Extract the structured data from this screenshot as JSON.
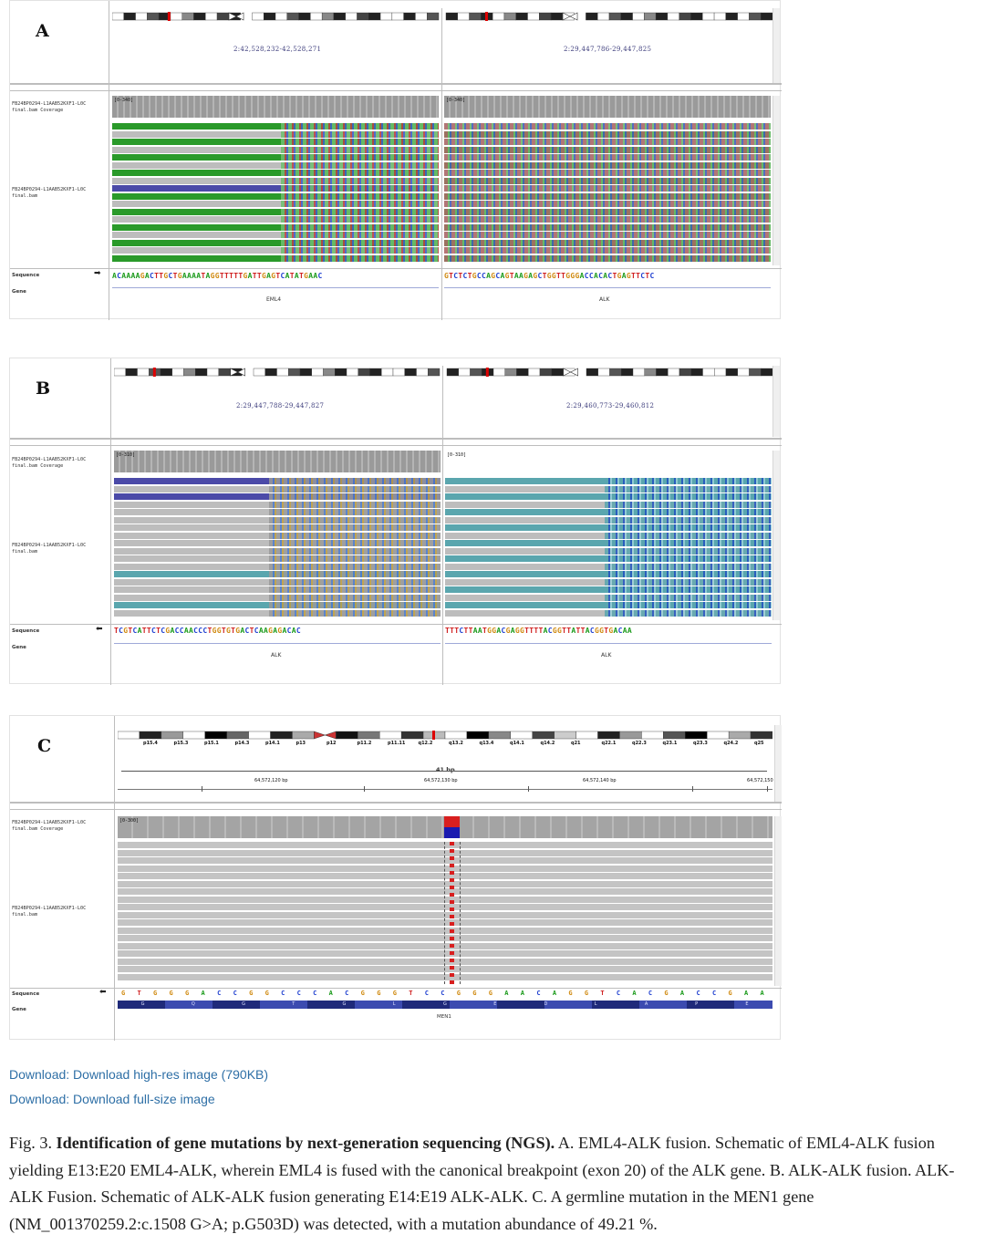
{
  "panels": {
    "A": {
      "letter": "A",
      "coord_left": "2:42,528,232-42,528,271",
      "coord_right": "2:29,447,786-29,447,825",
      "track_coverage": "FB24BP0294-L1AAB52KXF1-L0C\nfinal.bam Coverage",
      "track_bam": "FB24BP0294-L1AAB52KXF1-L0C\nfinal.bam",
      "cov_range": "[0-340]",
      "sequence_label": "Sequence",
      "gene_label": "Gene",
      "sequence_left": "ACAAAAGACTTGCTGAAAATAGGTTTTTGATTGAGTCATATGAAC",
      "sequence_right": "GTCTCTGCCAGCAGTAAGAGCTGGTTGGGACCACACTGAGTTCTC",
      "gene_left": "EML4",
      "gene_right": "ALK"
    },
    "B": {
      "letter": "B",
      "coord_left": "2:29,447,788-29,447,827",
      "coord_right": "2:29,460,773-29,460,812",
      "track_coverage": "FB24BP0294-L1AAB52KXF1-L0C\nfinal.bam Coverage",
      "track_bam": "FB24BP0294-L1AAB52KXF1-L0C\nfinal.bam",
      "cov_range": "[0-310]",
      "sequence_label": "Sequence",
      "gene_label": "Gene",
      "sequence_left": "TCGTCATTCTCGACCAACCCTGGTGTGACTCAAGAGACAC",
      "sequence_right": "TTTCTTAATGGACGAGGTTTTACGGTTATTACGGTGACAA",
      "gene_left": "ALK",
      "gene_right": "ALK"
    },
    "C": {
      "letter": "C",
      "bands": [
        "p15.4",
        "p15.3",
        "p15.1",
        "p14.3",
        "p14.1",
        "p13",
        "p12",
        "p11.2",
        "p11.11",
        "q12.2",
        "q13.2",
        "q13.4",
        "q14.1",
        "q14.2",
        "q21",
        "q22.1",
        "q22.3",
        "q23.1",
        "q23.3",
        "q24.2",
        "q25"
      ],
      "span": "41 bp",
      "ruler": [
        "64,572,120 bp",
        "64,572,130 bp",
        "64,572,140 bp",
        "64,572,150"
      ],
      "track_coverage": "FB24BP0294-L1AAB52KXF1-L0C\nfinal.bam Coverage",
      "track_bam": "FB24BP0294-L1AAB52KXF1-L0C\nfinal.bam",
      "cov_range": "[0-300]",
      "sequence_label": "Sequence",
      "gene_label": "Gene",
      "sequence": "GTGGGACCGGCCCACGGGTCCGGGAACAGGTCACGACCGAA",
      "aminoacids": "G Q G T G L G E D L A P E",
      "gene": "MEN1"
    }
  },
  "links": {
    "high_res": "Download: Download high-res image (790KB)",
    "full_size": "Download: Download full-size image"
  },
  "caption": {
    "prefix": "Fig. 3. ",
    "title": "Identification of gene mutations by next-generation sequencing (NGS).",
    "text": " A. EML4-ALK fusion. Schematic of EML4-ALK fusion yielding E13:E20 EML4-ALK, wherein EML4 is fused with the canonical breakpoint (exon 20) of the ALK gene. B. ALK-ALK fusion. ALK-ALK Fusion. Schematic of ALK-ALK fusion generating E14:E19 ALK-ALK. C. A germline mutation in the MEN1 gene (NM_001370259.2:c.1508 G>A; p.G503D) was detected, with a mutation abundance of 49.21 %."
  },
  "colors": {
    "read_green": "#2a9a2a",
    "read_grey": "#bdbdbd",
    "read_blue": "#4b4aa8",
    "read_teal": "#5aa6ae",
    "alt_red": "#d81f1f",
    "ref_blue": "#1a1ab0"
  }
}
